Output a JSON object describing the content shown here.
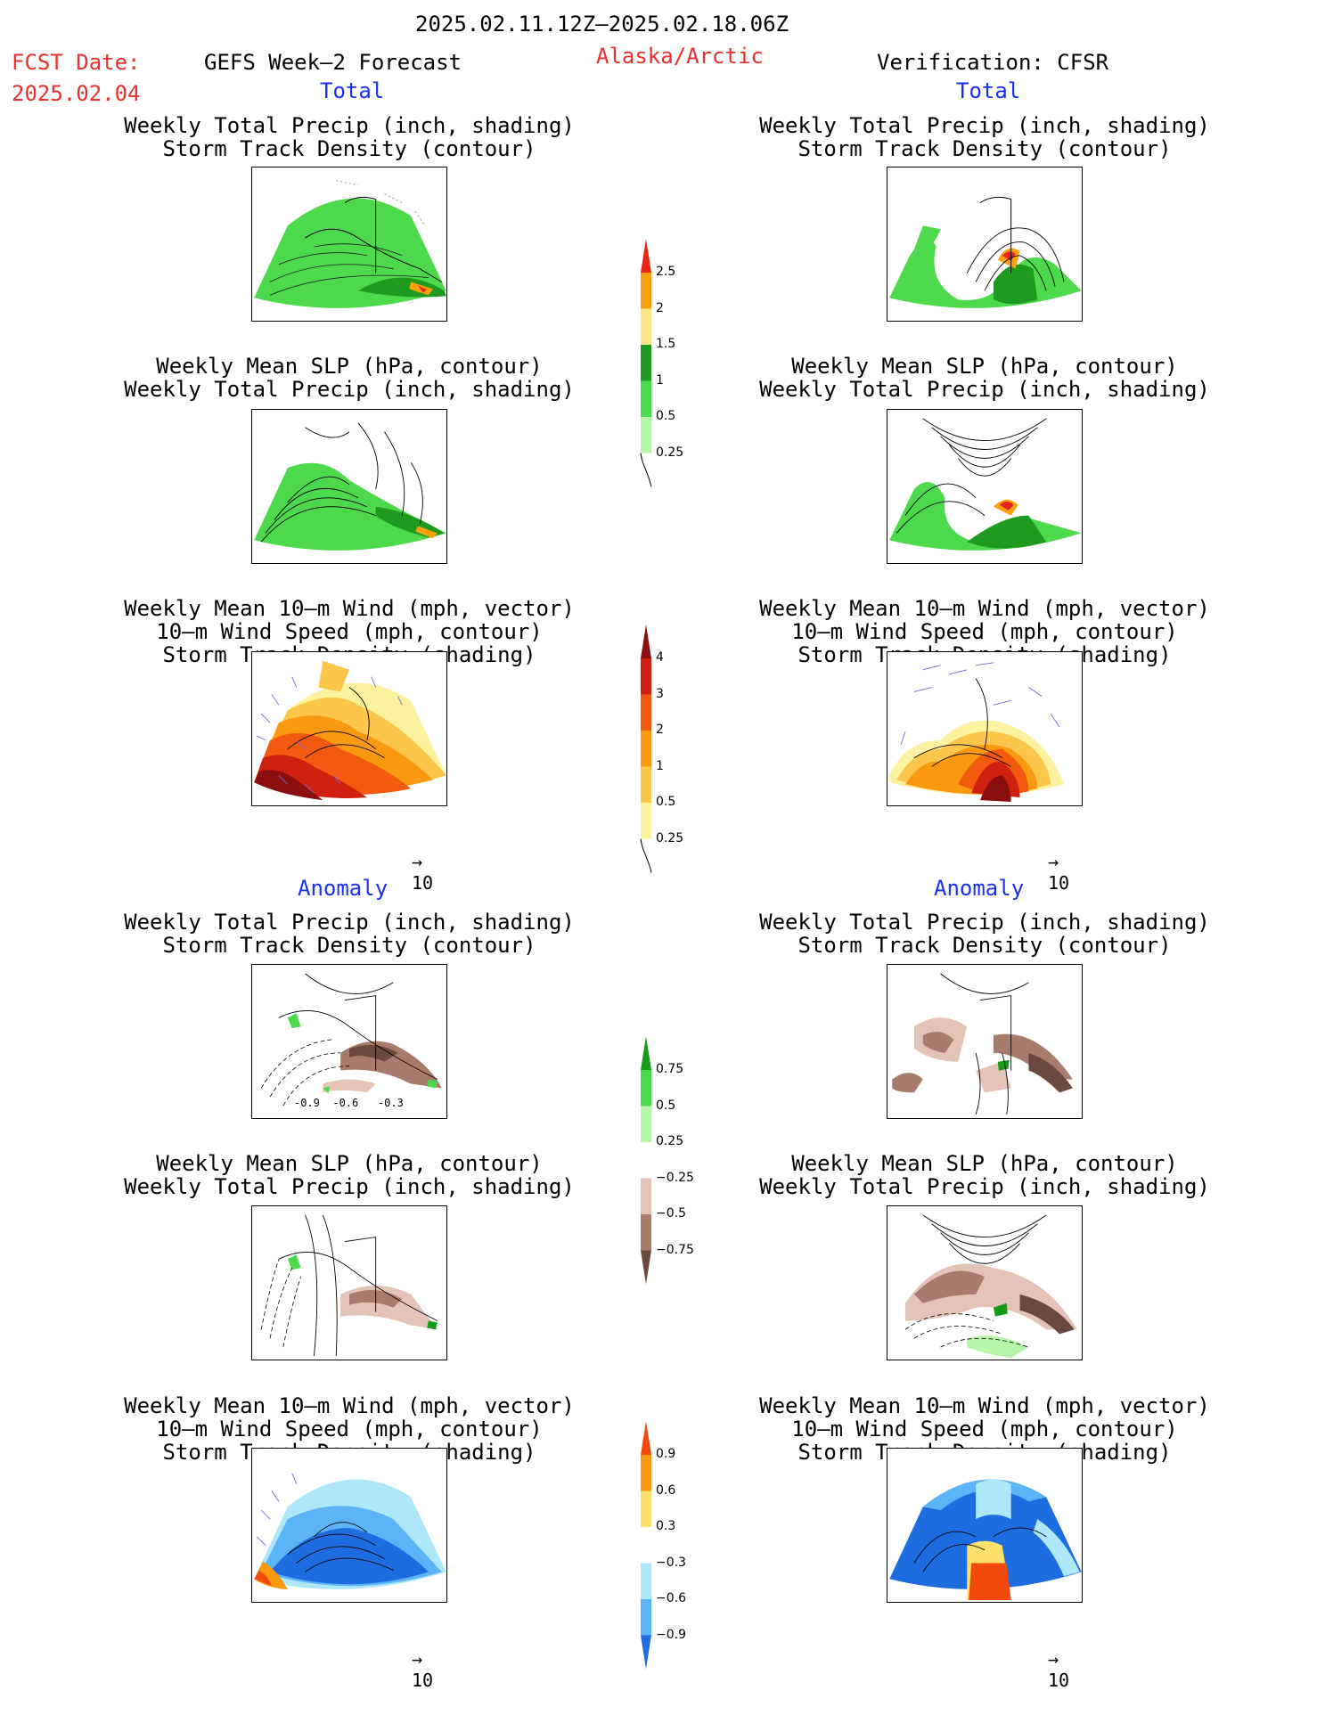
{
  "header": {
    "period": "2025.02.11.12Z–2025.02.18.06Z",
    "fcst_label": "FCST Date:",
    "fcst_date": "2025.02.04",
    "forecast_title": "GEFS Week–2 Forecast",
    "region": "Alaska/Arctic",
    "verification": "Verification: CFSR"
  },
  "sections": {
    "total": "Total",
    "anomaly": "Anomaly"
  },
  "titles": {
    "precip_track": [
      "Weekly Total Precip (inch, shading)",
      "Storm Track Density (contour)"
    ],
    "slp_precip": [
      "Weekly Mean SLP (hPa, contour)",
      "Weekly Total Precip (inch, shading)"
    ],
    "wind_track": [
      "Weekly Mean 10–m Wind (mph, vector)",
      "10–m Wind Speed (mph, contour)",
      "Storm Track Density (shading)"
    ]
  },
  "vector_ref": "10",
  "contour_labels": [
    "-0.9",
    "-0.6",
    "-0.3"
  ],
  "colorbars": {
    "precip_total": {
      "labels": [
        "2.5",
        "2",
        "1.5",
        "1",
        "0.5",
        "0.25"
      ],
      "colors": [
        "#e8241b",
        "#fda00f",
        "#fde68a",
        "#1e9a1e",
        "#4cd94c",
        "#b7f5a8"
      ]
    },
    "track_total": {
      "labels": [
        "4",
        "3",
        "2",
        "1",
        "0.5",
        "0.25"
      ],
      "colors": [
        "#8b0f0f",
        "#d0200f",
        "#f15a0f",
        "#fb9a10",
        "#fcc64a",
        "#fdf2a0"
      ]
    },
    "precip_anom": {
      "labels": [
        "0.75",
        "0.5",
        "0.25",
        "−0.25",
        "−0.5",
        "−0.75"
      ],
      "colors": [
        "#169b1a",
        "#4cd94c",
        "#b7f5a8",
        "#ffffff",
        "#e3c3b6",
        "#a87c6c",
        "#6a4a3c"
      ]
    },
    "track_anom": {
      "labels": [
        "0.9",
        "0.6",
        "0.3",
        "−0.3",
        "−0.6",
        "−0.9"
      ],
      "colors": [
        "#f24a0c",
        "#fb9a10",
        "#fde06b",
        "#ffffff",
        "#aee8f8",
        "#5cb3f5",
        "#1e6de0"
      ]
    }
  }
}
